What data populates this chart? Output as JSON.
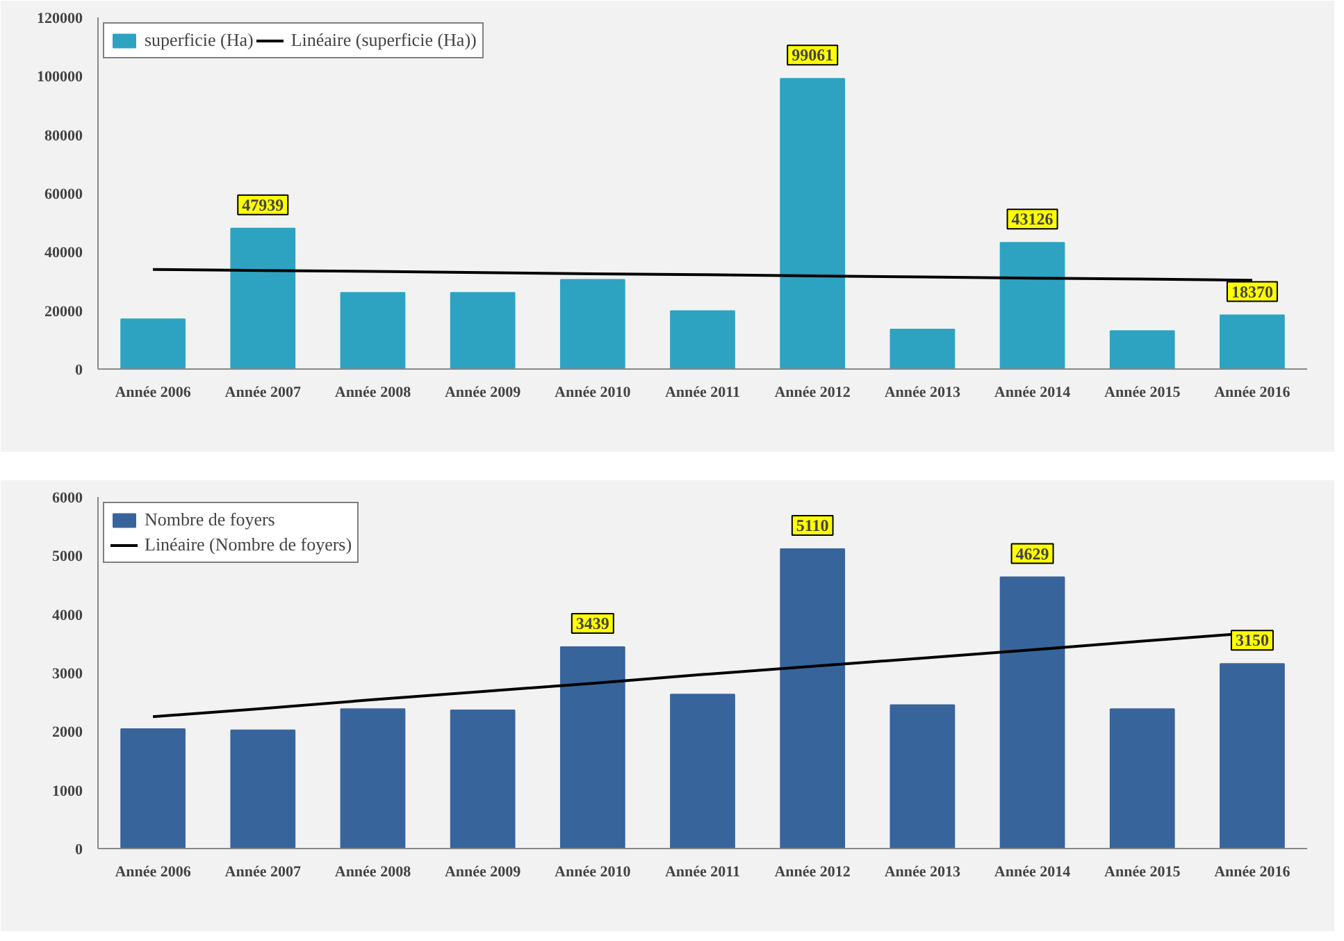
{
  "chart_data": [
    {
      "type": "bar",
      "categories": [
        "Année 2006",
        "Année 2007",
        "Année 2008",
        "Année 2009",
        "Année 2010",
        "Année 2011",
        "Année 2012",
        "Année 2013",
        "Année 2014",
        "Année 2015",
        "Année 2016"
      ],
      "series": [
        {
          "name": "superficie (Ha)",
          "color": "#2ea3c1",
          "values": [
            17000,
            47939,
            26000,
            26000,
            30500,
            19800,
            99061,
            13500,
            43126,
            13000,
            18370
          ],
          "value_labels": [
            null,
            "47939",
            null,
            null,
            null,
            null,
            "99061",
            null,
            "43126",
            null,
            "18370"
          ]
        },
        {
          "name": "Linéaire (superficie (Ha))",
          "type": "line",
          "color": "#000000",
          "values": [
            34000,
            33600,
            33300,
            32900,
            32500,
            32200,
            31800,
            31400,
            31000,
            30700,
            30300
          ]
        }
      ],
      "ylim": [
        0,
        120000
      ],
      "yticks": [
        0,
        20000,
        40000,
        60000,
        80000,
        100000,
        120000
      ],
      "grid": false,
      "legend": "top left"
    },
    {
      "type": "bar",
      "categories": [
        "Année 2006",
        "Année 2007",
        "Année 2008",
        "Année 2009",
        "Année 2010",
        "Année 2011",
        "Année 2012",
        "Année 2013",
        "Année 2014",
        "Année 2015",
        "Année 2016"
      ],
      "series": [
        {
          "name": "Nombre de foyers",
          "color": "#38649c",
          "values": [
            2040,
            2020,
            2380,
            2360,
            3439,
            2630,
            5110,
            2450,
            4629,
            2380,
            3150
          ],
          "value_labels": [
            null,
            null,
            null,
            null,
            "3439",
            null,
            "5110",
            null,
            "4629",
            null,
            "3150"
          ]
        },
        {
          "name": "Linéaire (Nombre de foyers)",
          "type": "line",
          "color": "#000000",
          "values": [
            2250,
            2390,
            2540,
            2680,
            2820,
            2970,
            3110,
            3250,
            3390,
            3540,
            3680
          ]
        }
      ],
      "ylim": [
        0,
        6000
      ],
      "yticks": [
        0,
        1000,
        2000,
        3000,
        4000,
        5000,
        6000
      ],
      "grid": false,
      "legend": "top left"
    }
  ]
}
